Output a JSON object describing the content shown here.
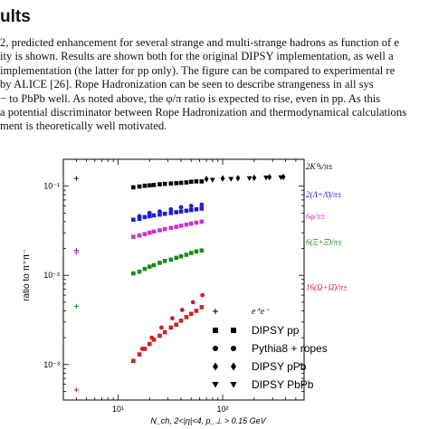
{
  "section": {
    "heading": "ults"
  },
  "paragraph": {
    "lines": [
      "2, predicted enhancement for several strange and multi-strange hadrons as function of e",
      "ity is shown.  Results are shown both for the original DIPSY implementation, as well a",
      "implementation (the latter for pp only). The figure can be compared to experimental re",
      " by ALICE [26].  Rope Hadronization can be seen to describe strangeness in all sys",
      "− to PbPb well.  As noted above, the φ/π ratio is expected to rise, even in pp.  As this",
      "a potential discriminator between Rope Hadronization and thermodynamical calculations",
      "ment is theoretically well motivated."
    ]
  },
  "chart_data": {
    "type": "scatter",
    "xlabel": "N_ch, 2<|η|<4, p_⊥ > 0.15 GeV",
    "ylabel": "ratio to π⁺π⁻",
    "xscale": "log",
    "yscale": "log",
    "xlim": [
      3,
      600
    ],
    "ylim": [
      0.0004,
      0.2
    ],
    "x_ticks": [
      "10¹",
      "10²"
    ],
    "y_ticks": [
      "10⁻³",
      "10⁻²",
      "10⁻¹"
    ],
    "legend": {
      "title": "e⁺e⁻",
      "entries": [
        {
          "label": "DIPSY pp",
          "marker": "square"
        },
        {
          "label": "Pythia8 + ropes",
          "marker": "circle"
        },
        {
          "label": "DIPSY pPb",
          "marker": "diamond"
        },
        {
          "label": "DIPSY PbPb",
          "marker": "triangle-down"
        }
      ],
      "placement": "bottom-right"
    },
    "series": [
      {
        "name": "2K⁰s/π±",
        "color": "#000000",
        "ee_ref": [
          4,
          0.122
        ],
        "pp_points": [
          [
            14,
            0.097
          ],
          [
            16,
            0.099
          ],
          [
            18,
            0.101
          ],
          [
            20,
            0.102
          ],
          [
            22,
            0.103
          ],
          [
            25,
            0.105
          ],
          [
            28,
            0.106
          ],
          [
            32,
            0.107
          ],
          [
            36,
            0.108
          ],
          [
            40,
            0.109
          ],
          [
            45,
            0.11
          ],
          [
            50,
            0.112
          ],
          [
            56,
            0.113
          ],
          [
            63,
            0.113
          ]
        ],
        "pPb_points": [
          [
            70,
            0.12
          ],
          [
            100,
            0.122
          ],
          [
            140,
            0.123
          ],
          [
            200,
            0.124
          ],
          [
            280,
            0.126
          ],
          [
            380,
            0.127
          ]
        ],
        "PbPb_points": [
          [
            80,
            0.117
          ],
          [
            120,
            0.12
          ],
          [
            180,
            0.122
          ],
          [
            260,
            0.124
          ],
          [
            360,
            0.125
          ]
        ]
      },
      {
        "name": "2(Λ+Λ̄)/π±",
        "color": "#1f1fd0",
        "ee_ref": [
          4,
          0.019
        ],
        "pp_points": [
          [
            14,
            0.042
          ],
          [
            16,
            0.043
          ],
          [
            18,
            0.045
          ],
          [
            20,
            0.046
          ],
          [
            22,
            0.047
          ],
          [
            25,
            0.048
          ],
          [
            28,
            0.049
          ],
          [
            32,
            0.05
          ],
          [
            36,
            0.051
          ],
          [
            40,
            0.052
          ],
          [
            45,
            0.053
          ],
          [
            50,
            0.054
          ],
          [
            56,
            0.055
          ],
          [
            63,
            0.056
          ]
        ],
        "rope_points": [
          [
            16,
            0.046
          ],
          [
            20,
            0.05
          ],
          [
            25,
            0.052
          ],
          [
            32,
            0.055
          ],
          [
            40,
            0.058
          ],
          [
            50,
            0.06
          ],
          [
            63,
            0.062
          ]
        ]
      },
      {
        "name": "6φ/π±",
        "color": "#cc33cc",
        "ee_ref": [
          4,
          0.018
        ],
        "pp_points": [
          [
            14,
            0.027
          ],
          [
            16,
            0.028
          ],
          [
            18,
            0.029
          ],
          [
            20,
            0.03
          ],
          [
            22,
            0.031
          ],
          [
            25,
            0.032
          ],
          [
            28,
            0.033
          ],
          [
            32,
            0.034
          ],
          [
            36,
            0.035
          ],
          [
            40,
            0.036
          ],
          [
            45,
            0.037
          ],
          [
            50,
            0.038
          ],
          [
            56,
            0.039
          ],
          [
            63,
            0.04
          ]
        ]
      },
      {
        "name": "6(Ξ+Ξ̄)/π±",
        "color": "#1a8a1a",
        "ee_ref": [
          4,
          0.0045
        ],
        "pp_points": [
          [
            14,
            0.0105
          ],
          [
            16,
            0.011
          ],
          [
            18,
            0.0118
          ],
          [
            20,
            0.0125
          ],
          [
            22,
            0.013
          ],
          [
            25,
            0.0138
          ],
          [
            28,
            0.0145
          ],
          [
            32,
            0.015
          ],
          [
            36,
            0.0157
          ],
          [
            40,
            0.0163
          ],
          [
            45,
            0.017
          ],
          [
            50,
            0.0178
          ],
          [
            56,
            0.0185
          ],
          [
            63,
            0.019
          ]
        ]
      },
      {
        "name": "16(Ω+Ω̄)/π±",
        "color": "#cc2222",
        "ee_ref": [
          4,
          0.00052
        ],
        "pp_points": [
          [
            14,
            0.0011
          ],
          [
            16,
            0.0013
          ],
          [
            18,
            0.0015
          ],
          [
            20,
            0.0017
          ],
          [
            22,
            0.0019
          ],
          [
            25,
            0.0021
          ],
          [
            28,
            0.0023
          ],
          [
            32,
            0.0026
          ],
          [
            36,
            0.0028
          ],
          [
            40,
            0.0031
          ],
          [
            45,
            0.0034
          ],
          [
            50,
            0.0037
          ],
          [
            56,
            0.004
          ],
          [
            63,
            0.0044
          ]
        ],
        "rope_points": [
          [
            17,
            0.0015
          ],
          [
            21,
            0.002
          ],
          [
            26,
            0.0026
          ],
          [
            33,
            0.0033
          ],
          [
            41,
            0.0041
          ],
          [
            52,
            0.005
          ],
          [
            64,
            0.006
          ]
        ]
      }
    ]
  }
}
